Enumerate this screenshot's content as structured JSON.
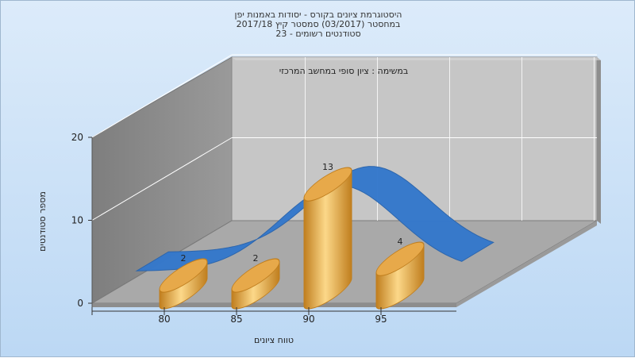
{
  "title_lines": [
    "היסטוגרמת ציונים בקורס - יסודות באמנות יפן",
    "במחסטר  (03/2017)  סמסטר קיץ 2017/18",
    "סטודנטים רשומים - 23"
  ],
  "colors": {
    "bar": "#e7a94a",
    "bar_light": "#fcd889",
    "bar_dark": "#c07e1e",
    "curve": "#3478cc",
    "back_wall": "#c6c6c6",
    "left_wall": "#8b8b8b",
    "floor": "#a9a9a9"
  },
  "chart_data": {
    "type": "bar",
    "title": "היסטוגרמת ציונים בקורס - יסודות באמנות יפן",
    "annotation": "במשימה : ציון סופי במחשב המרכזי",
    "xlabel": "טווח ציונים",
    "ylabel": "מספר סטודנטים",
    "categories": [
      "80",
      "85",
      "90",
      "95"
    ],
    "values": [
      2,
      2,
      13,
      4
    ],
    "data_labels": [
      "2",
      "2",
      "13",
      "4"
    ],
    "y_ticks": [
      "0",
      "10",
      "20"
    ],
    "ylim": [
      0,
      20
    ],
    "grid": true,
    "overlay": "normal-curve"
  }
}
